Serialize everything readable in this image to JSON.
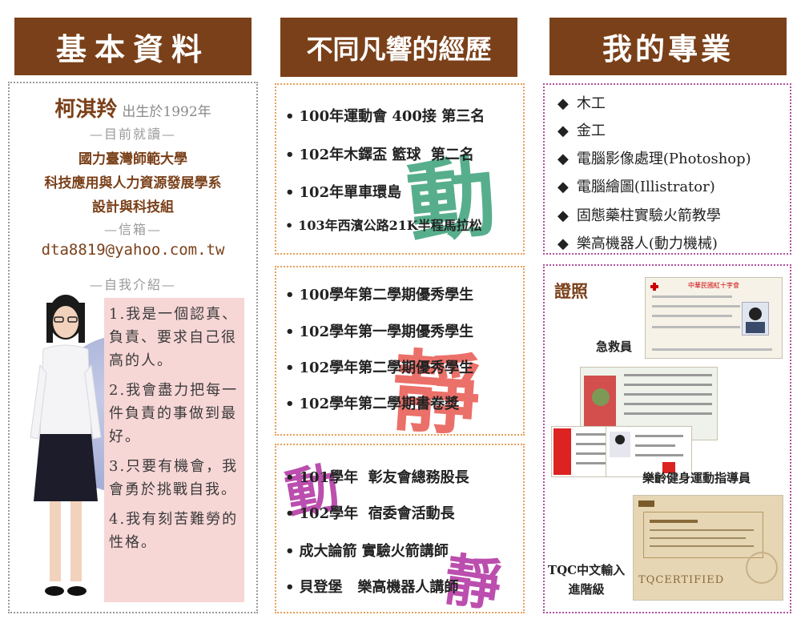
{
  "headers": {
    "basic": "基本資料",
    "experience": "不同凡響的經歷",
    "career": "我的專業"
  },
  "profile": {
    "name": "柯淇羚",
    "birth": "出生於1992年",
    "label_school": "—目前就讀—",
    "school_lines": [
      "國力臺灣師範大學",
      "科技應用與人力資源發展學系",
      "設計與科技組"
    ],
    "label_email": "—信箱—",
    "email": "dta8819@yahoo.com.tw",
    "label_intro": "—自我介紹—",
    "intro": [
      "1.我是一個認真、負責、要求自己很高的人。",
      "2.我會盡力把每一件負責的事做到最好。",
      "3.只要有機會，我會勇於挑戰自我。",
      "4.我有刻苦難勞的性格。"
    ]
  },
  "experience": {
    "sports": [
      "100年運動會 400接 第三名",
      "102年木鐸盃 籃球  第二名",
      "102年單車環島",
      "103年西濱公路21K半程馬拉松"
    ],
    "study": [
      "100學年第二學期優秀學生",
      "102學年第一學期優秀學生",
      "102學年第二學期優秀學生",
      "102學年第二學期書卷獎"
    ],
    "clubs": [
      "101學年  彰友會總務股長",
      "102學年  宿委會活動長",
      "成大論箭 實驗火箭講師",
      "貝登堡   樂高機器人講師"
    ],
    "decorations": {
      "move": "動",
      "still": "靜"
    }
  },
  "skills": [
    "木工",
    "金工",
    "電腦影像處理(Photoshop)",
    "電腦繪圖(Illistrator)",
    "固態藥柱實驗火箭教學",
    "樂高機器人(動力機械)"
  ],
  "certificates": {
    "title": "證照",
    "items": [
      {
        "label": "急救員",
        "card_header": "中華民國紅十字會"
      },
      {
        "label": "樂齡健身運動指導員"
      },
      {
        "label_lines": [
          "TQC中文輸入",
          "進階級"
        ],
        "card_stamp": "TQCERTIFIED"
      }
    ]
  },
  "colors": {
    "header": "#7a4019",
    "sport_deco": "#3aa07a",
    "study_deco": "#e8584f",
    "club_deco": "#b030a0"
  }
}
